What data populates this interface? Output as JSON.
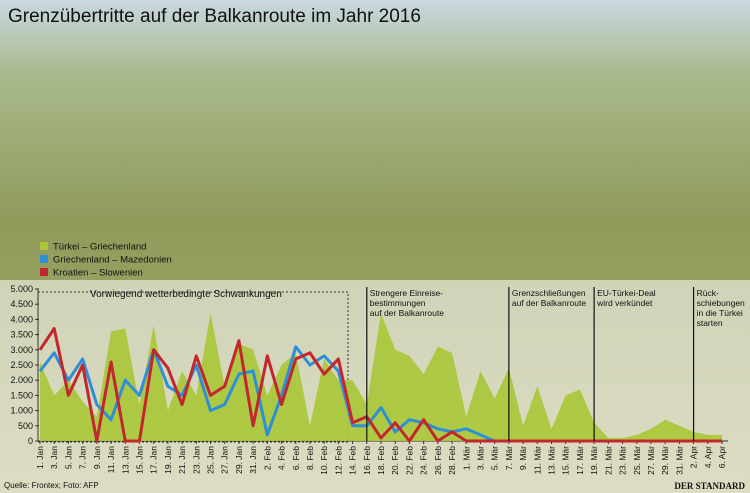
{
  "chart_data": {
    "type": "line",
    "title": "Grenzübertritte auf der Balkanroute im Jahr 2016",
    "source": "Quelle: Frontex; Foto: AFP",
    "brand": "DER STANDARD",
    "note": "Vorwiegend wetterbedingte Schwankungen",
    "categories": [
      "1. Jan",
      "3. Jan",
      "5. Jan",
      "7. Jan",
      "9. Jan",
      "11. Jan",
      "13. Jan",
      "15. Jan",
      "17. Jan",
      "19. Jan",
      "21. Jan",
      "23. Jan",
      "25. Jan",
      "27. Jan",
      "29. Jan",
      "31. Jan",
      "2. Feb",
      "4. Feb",
      "6. Feb",
      "8. Feb",
      "10. Feb",
      "12. Feb",
      "14. Feb",
      "16. Feb",
      "18. Feb",
      "20. Feb",
      "22. Feb",
      "24. Feb",
      "26. Feb",
      "28. Feb",
      "1. Mär",
      "3. Mär",
      "5. Mär",
      "7. Mär",
      "9. Mär",
      "11. Mär",
      "13. Mär",
      "15. Mär",
      "17. Mär",
      "19. Mär",
      "21. Mär",
      "23. Mär",
      "25. Mär",
      "27. Mär",
      "29. Mär",
      "31. Mär",
      "2. Apr",
      "4. Apr",
      "6. Apr"
    ],
    "series": [
      {
        "name": "Türkei – Griechenland",
        "color": "#a9c736",
        "style": "area",
        "values": [
          2600,
          1500,
          2000,
          1300,
          800,
          3600,
          3700,
          1200,
          3800,
          1000,
          2300,
          1500,
          4200,
          1800,
          3200,
          3000,
          1500,
          2500,
          2900,
          500,
          2700,
          2000,
          2000,
          1200,
          4200,
          3000,
          2800,
          2200,
          3100,
          2900,
          800,
          2300,
          1400,
          2400,
          500,
          1800,
          400,
          1500,
          1700,
          600,
          100,
          100,
          200,
          400,
          700,
          500,
          300,
          200,
          200
        ]
      },
      {
        "name": "Griechenland – Mazedonien",
        "color": "#2f8fd6",
        "style": "line",
        "values": [
          2300,
          2900,
          2000,
          2700,
          1200,
          700,
          2000,
          1500,
          3000,
          1800,
          1500,
          2500,
          1000,
          1200,
          2200,
          2300,
          200,
          1500,
          3100,
          2500,
          2800,
          2300,
          500,
          500,
          1100,
          300,
          700,
          600,
          400,
          300,
          400,
          200,
          0,
          null,
          null,
          null,
          null,
          null,
          null,
          null,
          null,
          null,
          null,
          null,
          null,
          null,
          null,
          null,
          null
        ]
      },
      {
        "name": "Kroatien – Slowenien",
        "color": "#c1272d",
        "style": "line",
        "values": [
          3000,
          3700,
          1500,
          2500,
          0,
          2600,
          0,
          0,
          3000,
          2400,
          1200,
          2800,
          1500,
          1800,
          3300,
          500,
          2800,
          1200,
          2700,
          2900,
          2200,
          2700,
          600,
          800,
          100,
          600,
          0,
          700,
          0,
          300,
          0,
          0,
          0,
          0,
          0,
          0,
          0,
          0,
          0,
          0,
          0,
          0,
          0,
          0,
          0,
          0,
          0,
          0,
          0
        ]
      }
    ],
    "ylim": [
      0,
      5000
    ],
    "yticks": [
      0,
      {
        "value": 500,
        "label": "500"
      },
      {
        "value": 1000,
        "label": "1.000"
      },
      {
        "value": 1500,
        "label": "1.500"
      },
      {
        "value": 2000,
        "label": "2.000"
      },
      {
        "value": 2500,
        "label": "2.500"
      },
      {
        "value": 3000,
        "label": "3.000"
      },
      {
        "value": 3500,
        "label": "3.500"
      },
      {
        "value": 4000,
        "label": "4.000"
      },
      {
        "value": 4500,
        "label": "4.500"
      },
      {
        "value": 5000,
        "label": "5.000"
      }
    ],
    "annotations": [
      {
        "x": "16. Feb",
        "lines": [
          "Strengere Einreise-",
          "bestimmungen",
          "auf der Balkanroute"
        ]
      },
      {
        "x": "7. Mär",
        "lines": [
          "Grenzschließungen",
          "auf der Balkanroute"
        ]
      },
      {
        "x": "19. Mär",
        "lines": [
          "EU-Türkei-Deal",
          "wird verkündet"
        ]
      },
      {
        "x": "2. Apr",
        "lines": [
          "Rück-",
          "schiebungen",
          "in die Türkei",
          "starten"
        ]
      }
    ]
  }
}
